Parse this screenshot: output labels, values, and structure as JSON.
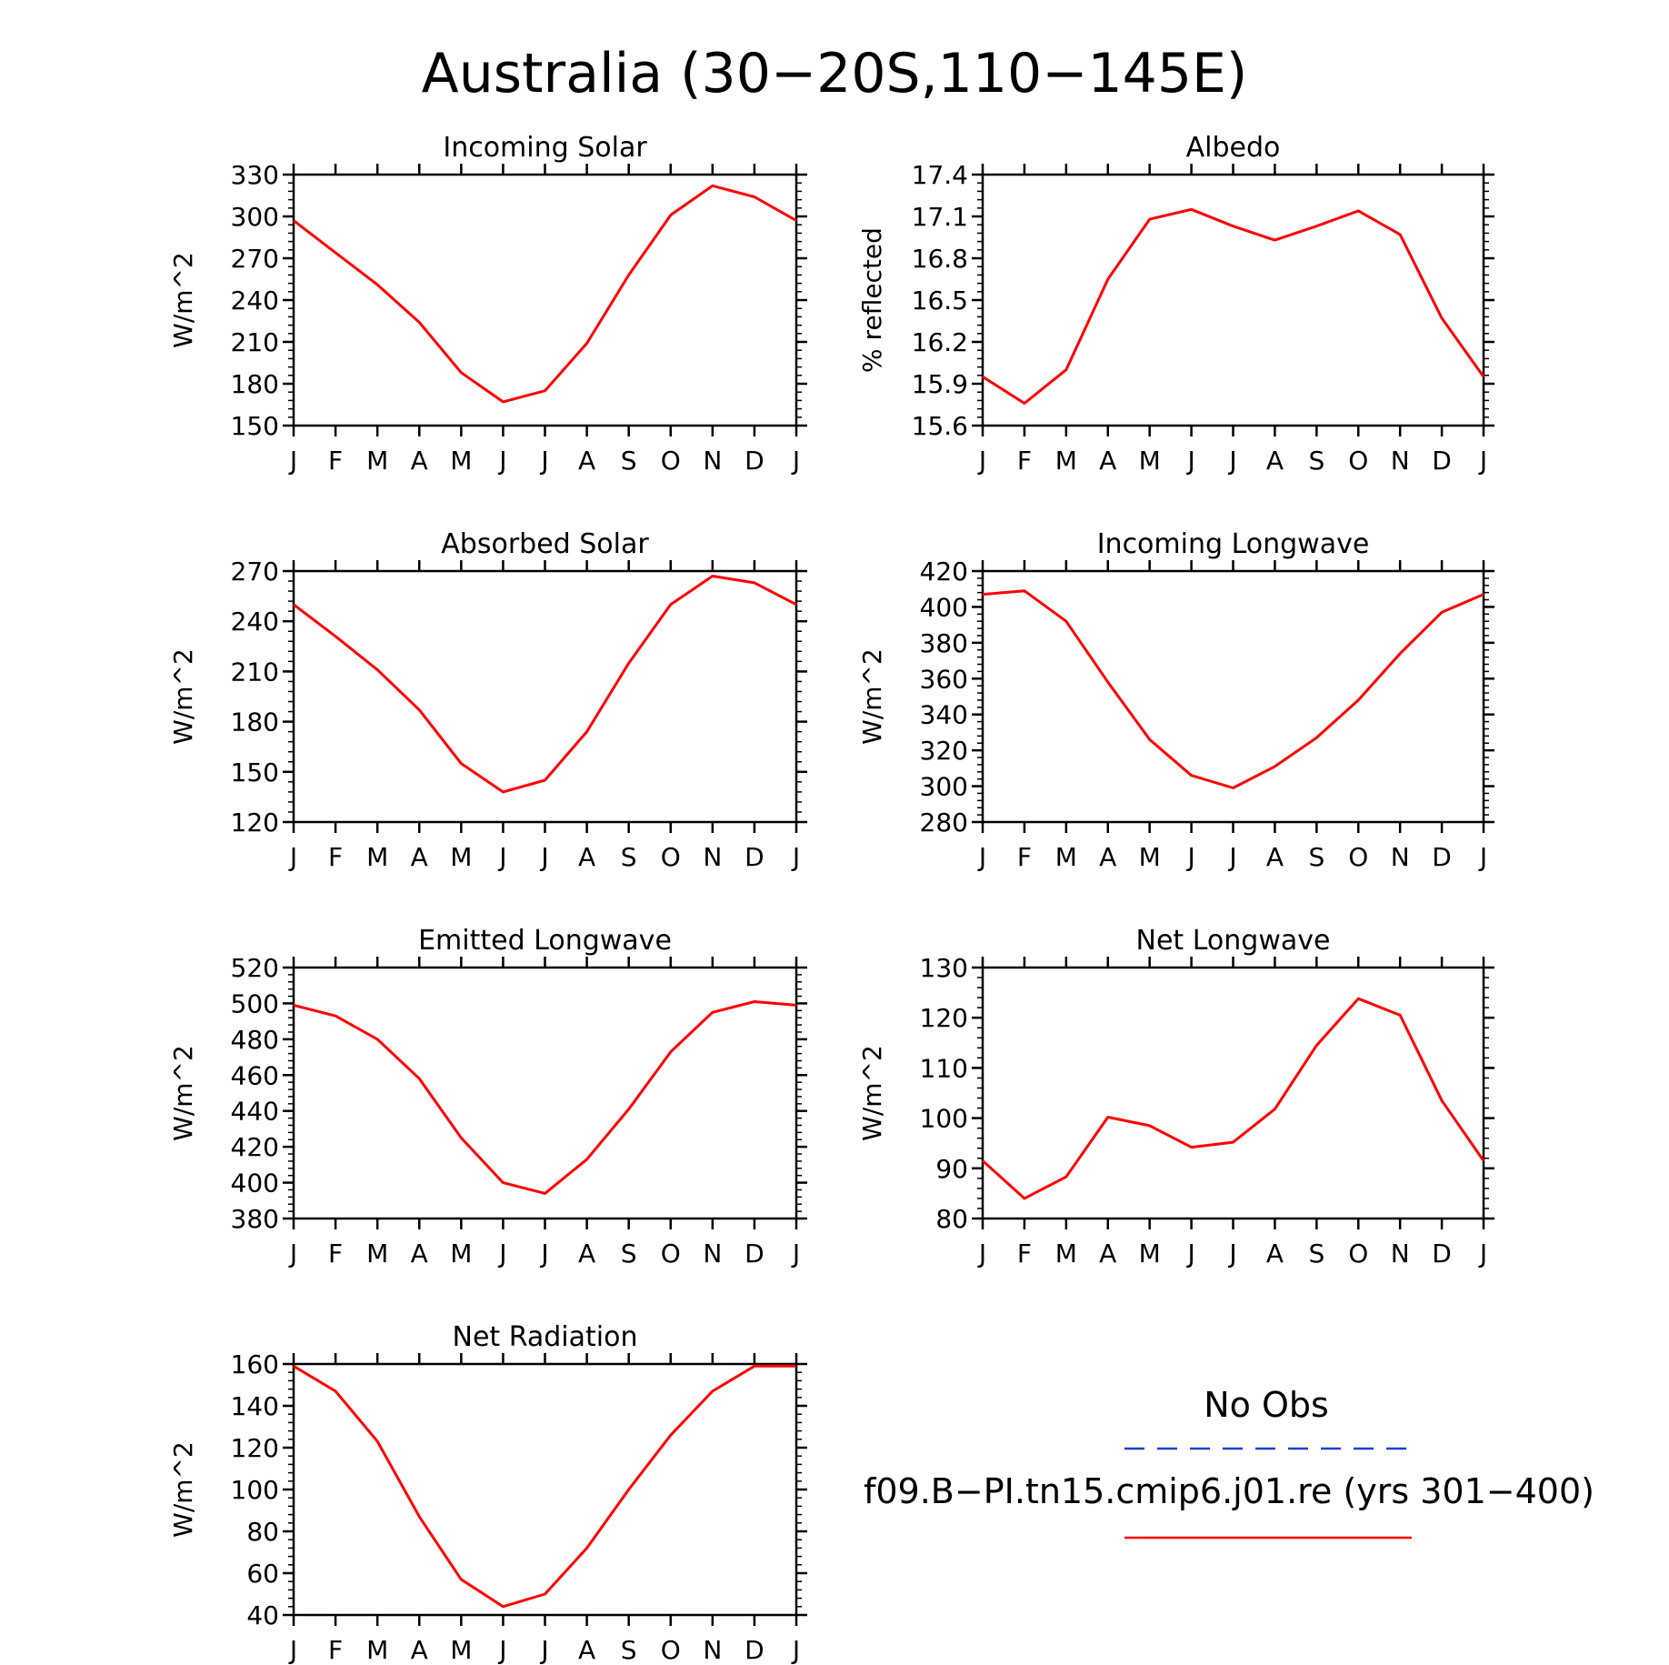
{
  "figure": {
    "title": "Australia (30−20S,110−145E)"
  },
  "months": [
    "J",
    "F",
    "M",
    "A",
    "M",
    "J",
    "J",
    "A",
    "S",
    "O",
    "N",
    "D",
    "J"
  ],
  "legend": {
    "obs_label": "No Obs",
    "obs_color": "#1f3fd6",
    "model_label": "f09.B−PI.tn15.cmip6.j01.re (yrs 301−400)",
    "model_color": "#ff0000"
  },
  "chart_data": [
    {
      "type": "line",
      "title": "Incoming Solar",
      "ylabel": "W/m^2",
      "ylim": [
        150,
        330
      ],
      "yticks": [
        150,
        180,
        210,
        240,
        270,
        300,
        330
      ],
      "ytick_labels": [
        "150",
        "180",
        "210",
        "240",
        "270",
        "300",
        "330"
      ],
      "x": [
        "J",
        "F",
        "M",
        "A",
        "M",
        "J",
        "J",
        "A",
        "S",
        "O",
        "N",
        "D",
        "J"
      ],
      "series": [
        {
          "color": "#ff0000",
          "values": [
            297,
            274,
            251,
            224,
            188,
            167,
            175,
            209,
            258,
            301,
            322,
            314,
            297
          ]
        }
      ]
    },
    {
      "type": "line",
      "title": "Albedo",
      "ylabel": "% reflected",
      "ylim": [
        15.6,
        17.4
      ],
      "yticks": [
        15.6,
        15.9,
        16.2,
        16.5,
        16.8,
        17.1,
        17.4
      ],
      "ytick_labels": [
        "15.6",
        "15.9",
        "16.2",
        "16.5",
        "16.8",
        "17.1",
        "17.4"
      ],
      "x": [
        "J",
        "F",
        "M",
        "A",
        "M",
        "J",
        "J",
        "A",
        "S",
        "O",
        "N",
        "D",
        "J"
      ],
      "series": [
        {
          "color": "#ff0000",
          "values": [
            15.95,
            15.76,
            16.0,
            16.65,
            17.08,
            17.15,
            17.03,
            16.93,
            17.03,
            17.14,
            16.97,
            16.37,
            15.95
          ]
        }
      ]
    },
    {
      "type": "line",
      "title": "Absorbed Solar",
      "ylabel": "W/m^2",
      "ylim": [
        120,
        270
      ],
      "yticks": [
        120,
        150,
        180,
        210,
        240,
        270
      ],
      "ytick_labels": [
        "120",
        "150",
        "180",
        "210",
        "240",
        "270"
      ],
      "x": [
        "J",
        "F",
        "M",
        "A",
        "M",
        "J",
        "J",
        "A",
        "S",
        "O",
        "N",
        "D",
        "J"
      ],
      "series": [
        {
          "color": "#ff0000",
          "values": [
            250,
            231,
            211,
            187,
            155,
            138,
            145,
            174,
            215,
            250,
            267,
            263,
            250
          ]
        }
      ]
    },
    {
      "type": "line",
      "title": "Incoming Longwave",
      "ylabel": "W/m^2",
      "ylim": [
        280,
        420
      ],
      "yticks": [
        280,
        300,
        320,
        340,
        360,
        380,
        400,
        420
      ],
      "ytick_labels": [
        "280",
        "300",
        "320",
        "340",
        "360",
        "380",
        "400",
        "420"
      ],
      "x": [
        "J",
        "F",
        "M",
        "A",
        "M",
        "J",
        "J",
        "A",
        "S",
        "O",
        "N",
        "D",
        "J"
      ],
      "series": [
        {
          "color": "#ff0000",
          "values": [
            407,
            409,
            392,
            358,
            326,
            306,
            299,
            311,
            327,
            348,
            374,
            397,
            407
          ]
        }
      ]
    },
    {
      "type": "line",
      "title": "Emitted Longwave",
      "ylabel": "W/m^2",
      "ylim": [
        380,
        520
      ],
      "yticks": [
        380,
        400,
        420,
        440,
        460,
        480,
        500,
        520
      ],
      "ytick_labels": [
        "380",
        "400",
        "420",
        "440",
        "460",
        "480",
        "500",
        "520"
      ],
      "x": [
        "J",
        "F",
        "M",
        "A",
        "M",
        "J",
        "J",
        "A",
        "S",
        "O",
        "N",
        "D",
        "J"
      ],
      "series": [
        {
          "color": "#ff0000",
          "values": [
            499,
            493,
            480,
            458,
            425,
            400,
            394,
            413,
            441,
            473,
            495,
            501,
            499
          ]
        }
      ]
    },
    {
      "type": "line",
      "title": "Net Longwave",
      "ylabel": "W/m^2",
      "ylim": [
        80,
        130
      ],
      "yticks": [
        80,
        90,
        100,
        110,
        120,
        130
      ],
      "ytick_labels": [
        "80",
        "90",
        "100",
        "110",
        "120",
        "130"
      ],
      "x": [
        "J",
        "F",
        "M",
        "A",
        "M",
        "J",
        "J",
        "A",
        "S",
        "O",
        "N",
        "D",
        "J"
      ],
      "series": [
        {
          "color": "#ff0000",
          "values": [
            91.5,
            84,
            88.3,
            100.2,
            98.5,
            94.2,
            95.2,
            101.8,
            114.5,
            123.8,
            120.5,
            103.5,
            91.5
          ]
        }
      ]
    },
    {
      "type": "line",
      "title": "Net Radiation",
      "ylabel": "W/m^2",
      "ylim": [
        40,
        160
      ],
      "yticks": [
        40,
        60,
        80,
        100,
        120,
        140,
        160
      ],
      "ytick_labels": [
        "40",
        "60",
        "80",
        "100",
        "120",
        "140",
        "160"
      ],
      "x": [
        "J",
        "F",
        "M",
        "A",
        "M",
        "J",
        "J",
        "A",
        "S",
        "O",
        "N",
        "D",
        "J"
      ],
      "series": [
        {
          "color": "#ff0000",
          "values": [
            159,
            147,
            123,
            87,
            57,
            44,
            50,
            72,
            100,
            126,
            147,
            159,
            159
          ]
        }
      ]
    }
  ]
}
